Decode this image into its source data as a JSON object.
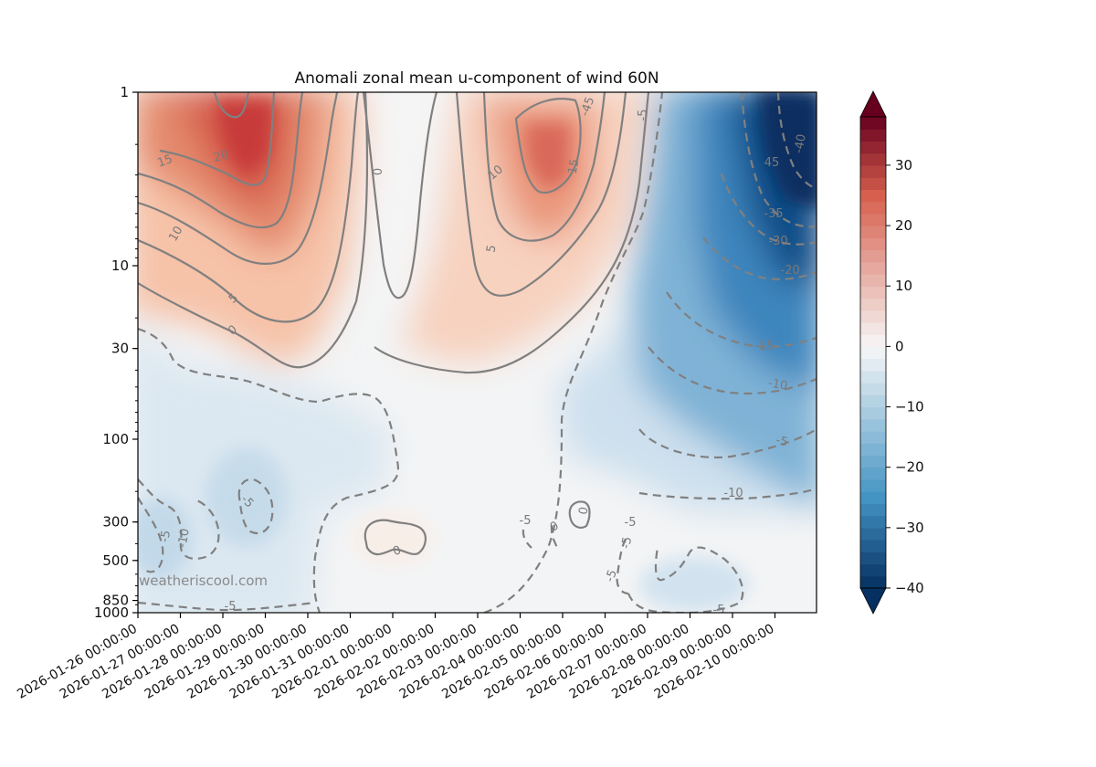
{
  "chart_data": {
    "type": "heatmap",
    "title": "Anomali zonal mean u-component of wind 60N",
    "xlabel": "",
    "ylabel": "",
    "x_tick_labels": [
      "2026-01-26 00:00:00",
      "2026-01-27 00:00:00",
      "2026-01-28 00:00:00",
      "2026-01-29 00:00:00",
      "2026-01-30 00:00:00",
      "2026-01-31 00:00:00",
      "2026-02-01 00:00:00",
      "2026-02-02 00:00:00",
      "2026-02-03 00:00:00",
      "2026-02-04 00:00:00",
      "2026-02-05 00:00:00",
      "2026-02-06 00:00:00",
      "2026-02-07 00:00:00",
      "2026-02-08 00:00:00",
      "2026-02-09 00:00:00",
      "2026-02-10 00:00:00"
    ],
    "x_range": [
      "2026-01-26 00:00:00",
      "2026-02-11 00:00:00"
    ],
    "y_tick_labels": [
      "1",
      "10",
      "30",
      "100",
      "300",
      "500",
      "850",
      "1000"
    ],
    "y_scale": "log",
    "y_range": [
      1000,
      1
    ],
    "colorbar": {
      "range": [
        -40,
        38
      ],
      "ticks": [
        "30",
        "20",
        "10",
        "0",
        "−10",
        "−20",
        "−30",
        "−40"
      ],
      "extend": "both"
    },
    "contour_labels": [
      "15",
      "20",
      "10",
      "5",
      "0",
      "10",
      "15",
      "5",
      "0",
      "-45",
      "45",
      "-40",
      "-35",
      "-30",
      "-20",
      "-15",
      "-10",
      "-5",
      "-10",
      "-5",
      "-10",
      "-5",
      "-5",
      "-5",
      "0",
      "0",
      "-5",
      "-5",
      "-5",
      "-5",
      "0",
      "-5"
    ],
    "watermark": "weatheriscool.com",
    "colors": {
      "positive_max": "#67001f",
      "positive": "#d6604d",
      "neutral": "#f7f7f7",
      "negative": "#4393c3",
      "negative_max": "#053061",
      "contour": "#808080"
    },
    "grid": false,
    "legend": "colorbar-right"
  }
}
